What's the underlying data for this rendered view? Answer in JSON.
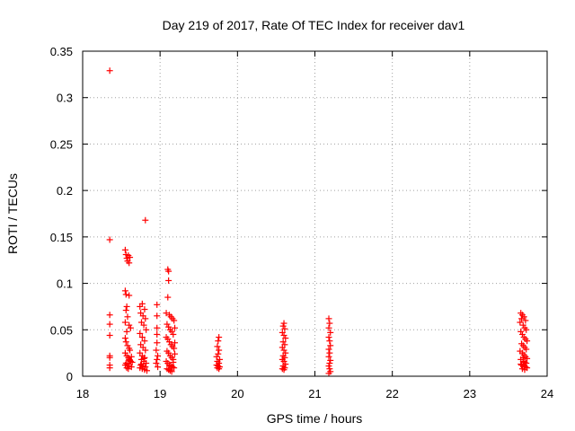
{
  "chart_data": {
    "type": "scatter",
    "title": "Day 219 of 2017, Rate Of TEC Index for receiver dav1",
    "xlabel": "GPS time / hours",
    "ylabel": "ROTI / TECUs",
    "xlim": [
      18,
      24
    ],
    "ylim": [
      0,
      0.35
    ],
    "xticks": [
      18,
      19,
      20,
      21,
      22,
      23,
      24
    ],
    "yticks": [
      0,
      0.05,
      0.1,
      0.15,
      0.2,
      0.25,
      0.3,
      0.35
    ],
    "xtick_labels": [
      "18",
      "19",
      "20",
      "21",
      "22",
      "23",
      "24"
    ],
    "ytick_labels": [
      "0",
      "0.05",
      "0.1",
      "0.15",
      "0.2",
      "0.25",
      "0.3",
      "0.35"
    ],
    "grid": true,
    "marker": "+",
    "color": "#ff0000",
    "series": [
      {
        "name": "dav1",
        "points": [
          [
            18.35,
            0.329
          ],
          [
            18.35,
            0.147
          ],
          [
            18.35,
            0.066
          ],
          [
            18.35,
            0.056
          ],
          [
            18.35,
            0.044
          ],
          [
            18.35,
            0.022
          ],
          [
            18.35,
            0.02
          ],
          [
            18.35,
            0.012
          ],
          [
            18.35,
            0.009
          ],
          [
            18.55,
            0.136
          ],
          [
            18.56,
            0.131
          ],
          [
            18.57,
            0.127
          ],
          [
            18.58,
            0.124
          ],
          [
            18.59,
            0.13
          ],
          [
            18.6,
            0.122
          ],
          [
            18.61,
            0.128
          ],
          [
            18.55,
            0.092
          ],
          [
            18.56,
            0.088
          ],
          [
            18.6,
            0.087
          ],
          [
            18.57,
            0.075
          ],
          [
            18.56,
            0.071
          ],
          [
            18.58,
            0.064
          ],
          [
            18.55,
            0.058
          ],
          [
            18.6,
            0.055
          ],
          [
            18.62,
            0.052
          ],
          [
            18.57,
            0.048
          ],
          [
            18.55,
            0.041
          ],
          [
            18.56,
            0.037
          ],
          [
            18.58,
            0.033
          ],
          [
            18.6,
            0.03
          ],
          [
            18.61,
            0.028
          ],
          [
            18.55,
            0.025
          ],
          [
            18.57,
            0.022
          ],
          [
            18.59,
            0.02
          ],
          [
            18.6,
            0.018
          ],
          [
            18.62,
            0.016
          ],
          [
            18.56,
            0.014
          ],
          [
            18.58,
            0.013
          ],
          [
            18.55,
            0.012
          ],
          [
            18.6,
            0.011
          ],
          [
            18.63,
            0.01
          ],
          [
            18.57,
            0.009
          ],
          [
            18.59,
            0.008
          ],
          [
            18.61,
            0.017
          ],
          [
            18.63,
            0.021
          ],
          [
            18.64,
            0.015
          ],
          [
            18.81,
            0.168
          ],
          [
            18.74,
            0.075
          ],
          [
            18.77,
            0.078
          ],
          [
            18.8,
            0.072
          ],
          [
            18.75,
            0.068
          ],
          [
            18.78,
            0.065
          ],
          [
            18.81,
            0.062
          ],
          [
            18.76,
            0.058
          ],
          [
            18.79,
            0.055
          ],
          [
            18.82,
            0.05
          ],
          [
            18.74,
            0.046
          ],
          [
            18.77,
            0.042
          ],
          [
            18.8,
            0.038
          ],
          [
            18.75,
            0.034
          ],
          [
            18.78,
            0.031
          ],
          [
            18.81,
            0.028
          ],
          [
            18.74,
            0.025
          ],
          [
            18.77,
            0.022
          ],
          [
            18.8,
            0.02
          ],
          [
            18.76,
            0.018
          ],
          [
            18.79,
            0.016
          ],
          [
            18.82,
            0.014
          ],
          [
            18.75,
            0.012
          ],
          [
            18.78,
            0.011
          ],
          [
            18.81,
            0.01
          ],
          [
            18.74,
            0.009
          ],
          [
            18.77,
            0.008
          ],
          [
            18.8,
            0.007
          ],
          [
            18.83,
            0.006
          ],
          [
            18.76,
            0.013
          ],
          [
            18.79,
            0.019
          ],
          [
            18.96,
            0.077
          ],
          [
            18.96,
            0.065
          ],
          [
            18.96,
            0.052
          ],
          [
            18.96,
            0.045
          ],
          [
            18.96,
            0.036
          ],
          [
            18.95,
            0.028
          ],
          [
            18.97,
            0.022
          ],
          [
            18.96,
            0.018
          ],
          [
            18.95,
            0.014
          ],
          [
            18.97,
            0.01
          ],
          [
            19.1,
            0.115
          ],
          [
            19.11,
            0.113
          ],
          [
            19.11,
            0.103
          ],
          [
            19.1,
            0.085
          ],
          [
            19.08,
            0.068
          ],
          [
            19.12,
            0.066
          ],
          [
            19.14,
            0.064
          ],
          [
            19.16,
            0.062
          ],
          [
            19.18,
            0.06
          ],
          [
            19.09,
            0.056
          ],
          [
            19.11,
            0.053
          ],
          [
            19.13,
            0.05
          ],
          [
            19.15,
            0.048
          ],
          [
            19.17,
            0.045
          ],
          [
            19.08,
            0.042
          ],
          [
            19.1,
            0.04
          ],
          [
            19.12,
            0.037
          ],
          [
            19.14,
            0.034
          ],
          [
            19.16,
            0.032
          ],
          [
            19.18,
            0.03
          ],
          [
            19.09,
            0.027
          ],
          [
            19.11,
            0.025
          ],
          [
            19.13,
            0.022
          ],
          [
            19.15,
            0.02
          ],
          [
            19.17,
            0.018
          ],
          [
            19.08,
            0.016
          ],
          [
            19.1,
            0.014
          ],
          [
            19.12,
            0.012
          ],
          [
            19.14,
            0.011
          ],
          [
            19.16,
            0.01
          ],
          [
            19.18,
            0.009
          ],
          [
            19.09,
            0.008
          ],
          [
            19.11,
            0.007
          ],
          [
            19.13,
            0.006
          ],
          [
            19.15,
            0.005
          ],
          [
            19.17,
            0.015
          ],
          [
            19.19,
            0.024
          ],
          [
            19.19,
            0.036
          ],
          [
            19.19,
            0.052
          ],
          [
            19.76,
            0.042
          ],
          [
            19.75,
            0.038
          ],
          [
            19.74,
            0.032
          ],
          [
            19.76,
            0.028
          ],
          [
            19.75,
            0.024
          ],
          [
            19.73,
            0.021
          ],
          [
            19.77,
            0.018
          ],
          [
            19.74,
            0.016
          ],
          [
            19.76,
            0.014
          ],
          [
            19.73,
            0.012
          ],
          [
            19.75,
            0.011
          ],
          [
            19.77,
            0.01
          ],
          [
            19.74,
            0.009
          ],
          [
            19.76,
            0.008
          ],
          [
            20.6,
            0.057
          ],
          [
            20.59,
            0.054
          ],
          [
            20.61,
            0.051
          ],
          [
            20.58,
            0.047
          ],
          [
            20.6,
            0.044
          ],
          [
            20.62,
            0.041
          ],
          [
            20.59,
            0.037
          ],
          [
            20.61,
            0.034
          ],
          [
            20.58,
            0.031
          ],
          [
            20.6,
            0.028
          ],
          [
            20.62,
            0.025
          ],
          [
            20.59,
            0.022
          ],
          [
            20.61,
            0.02
          ],
          [
            20.58,
            0.018
          ],
          [
            20.6,
            0.016
          ],
          [
            20.62,
            0.013
          ],
          [
            20.59,
            0.011
          ],
          [
            20.61,
            0.009
          ],
          [
            20.58,
            0.008
          ],
          [
            20.6,
            0.007
          ],
          [
            21.18,
            0.062
          ],
          [
            21.19,
            0.057
          ],
          [
            21.18,
            0.052
          ],
          [
            21.2,
            0.047
          ],
          [
            21.18,
            0.042
          ],
          [
            21.19,
            0.038
          ],
          [
            21.2,
            0.033
          ],
          [
            21.18,
            0.029
          ],
          [
            21.19,
            0.025
          ],
          [
            21.18,
            0.021
          ],
          [
            21.2,
            0.017
          ],
          [
            21.19,
            0.014
          ],
          [
            21.18,
            0.011
          ],
          [
            21.19,
            0.008
          ],
          [
            21.2,
            0.005
          ],
          [
            21.18,
            0.003
          ],
          [
            23.66,
            0.068
          ],
          [
            23.68,
            0.066
          ],
          [
            23.7,
            0.064
          ],
          [
            23.67,
            0.062
          ],
          [
            23.72,
            0.06
          ],
          [
            23.65,
            0.058
          ],
          [
            23.69,
            0.055
          ],
          [
            23.71,
            0.052
          ],
          [
            23.73,
            0.05
          ],
          [
            23.66,
            0.048
          ],
          [
            23.68,
            0.045
          ],
          [
            23.7,
            0.042
          ],
          [
            23.72,
            0.04
          ],
          [
            23.74,
            0.038
          ],
          [
            23.67,
            0.035
          ],
          [
            23.69,
            0.033
          ],
          [
            23.71,
            0.031
          ],
          [
            23.73,
            0.029
          ],
          [
            23.65,
            0.027
          ],
          [
            23.68,
            0.025
          ],
          [
            23.7,
            0.023
          ],
          [
            23.72,
            0.021
          ],
          [
            23.74,
            0.019
          ],
          [
            23.66,
            0.018
          ],
          [
            23.69,
            0.016
          ],
          [
            23.71,
            0.015
          ],
          [
            23.73,
            0.014
          ],
          [
            23.67,
            0.012
          ],
          [
            23.7,
            0.011
          ],
          [
            23.72,
            0.01
          ],
          [
            23.74,
            0.009
          ],
          [
            23.68,
            0.008
          ],
          [
            23.71,
            0.007
          ],
          [
            23.66,
            0.013
          ],
          [
            23.69,
            0.02
          ]
        ]
      }
    ]
  }
}
